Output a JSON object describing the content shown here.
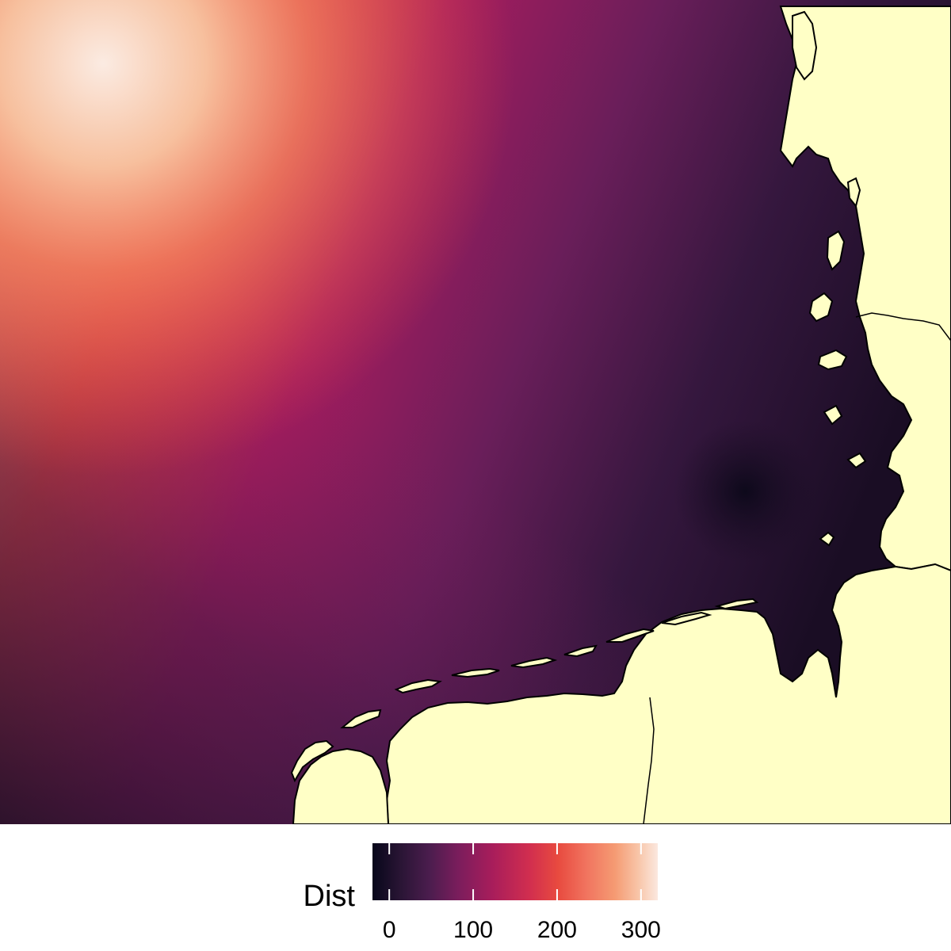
{
  "legend": {
    "title": "Dist",
    "ticks": [
      {
        "value": 0,
        "label": "0"
      },
      {
        "value": 100,
        "label": "100"
      },
      {
        "value": 200,
        "label": "200"
      },
      {
        "value": 300,
        "label": "300"
      }
    ],
    "range": [
      -20,
      320
    ]
  },
  "colors": {
    "land": "#ffffc6",
    "coastline": "#000000",
    "scale": [
      "#07071a",
      "#2a1535",
      "#4b1d4e",
      "#7a1d5c",
      "#a81d5b",
      "#d12e4f",
      "#e84a3f",
      "#f1745f",
      "#f59b73",
      "#f8c4a7",
      "#fbe8df"
    ]
  }
}
